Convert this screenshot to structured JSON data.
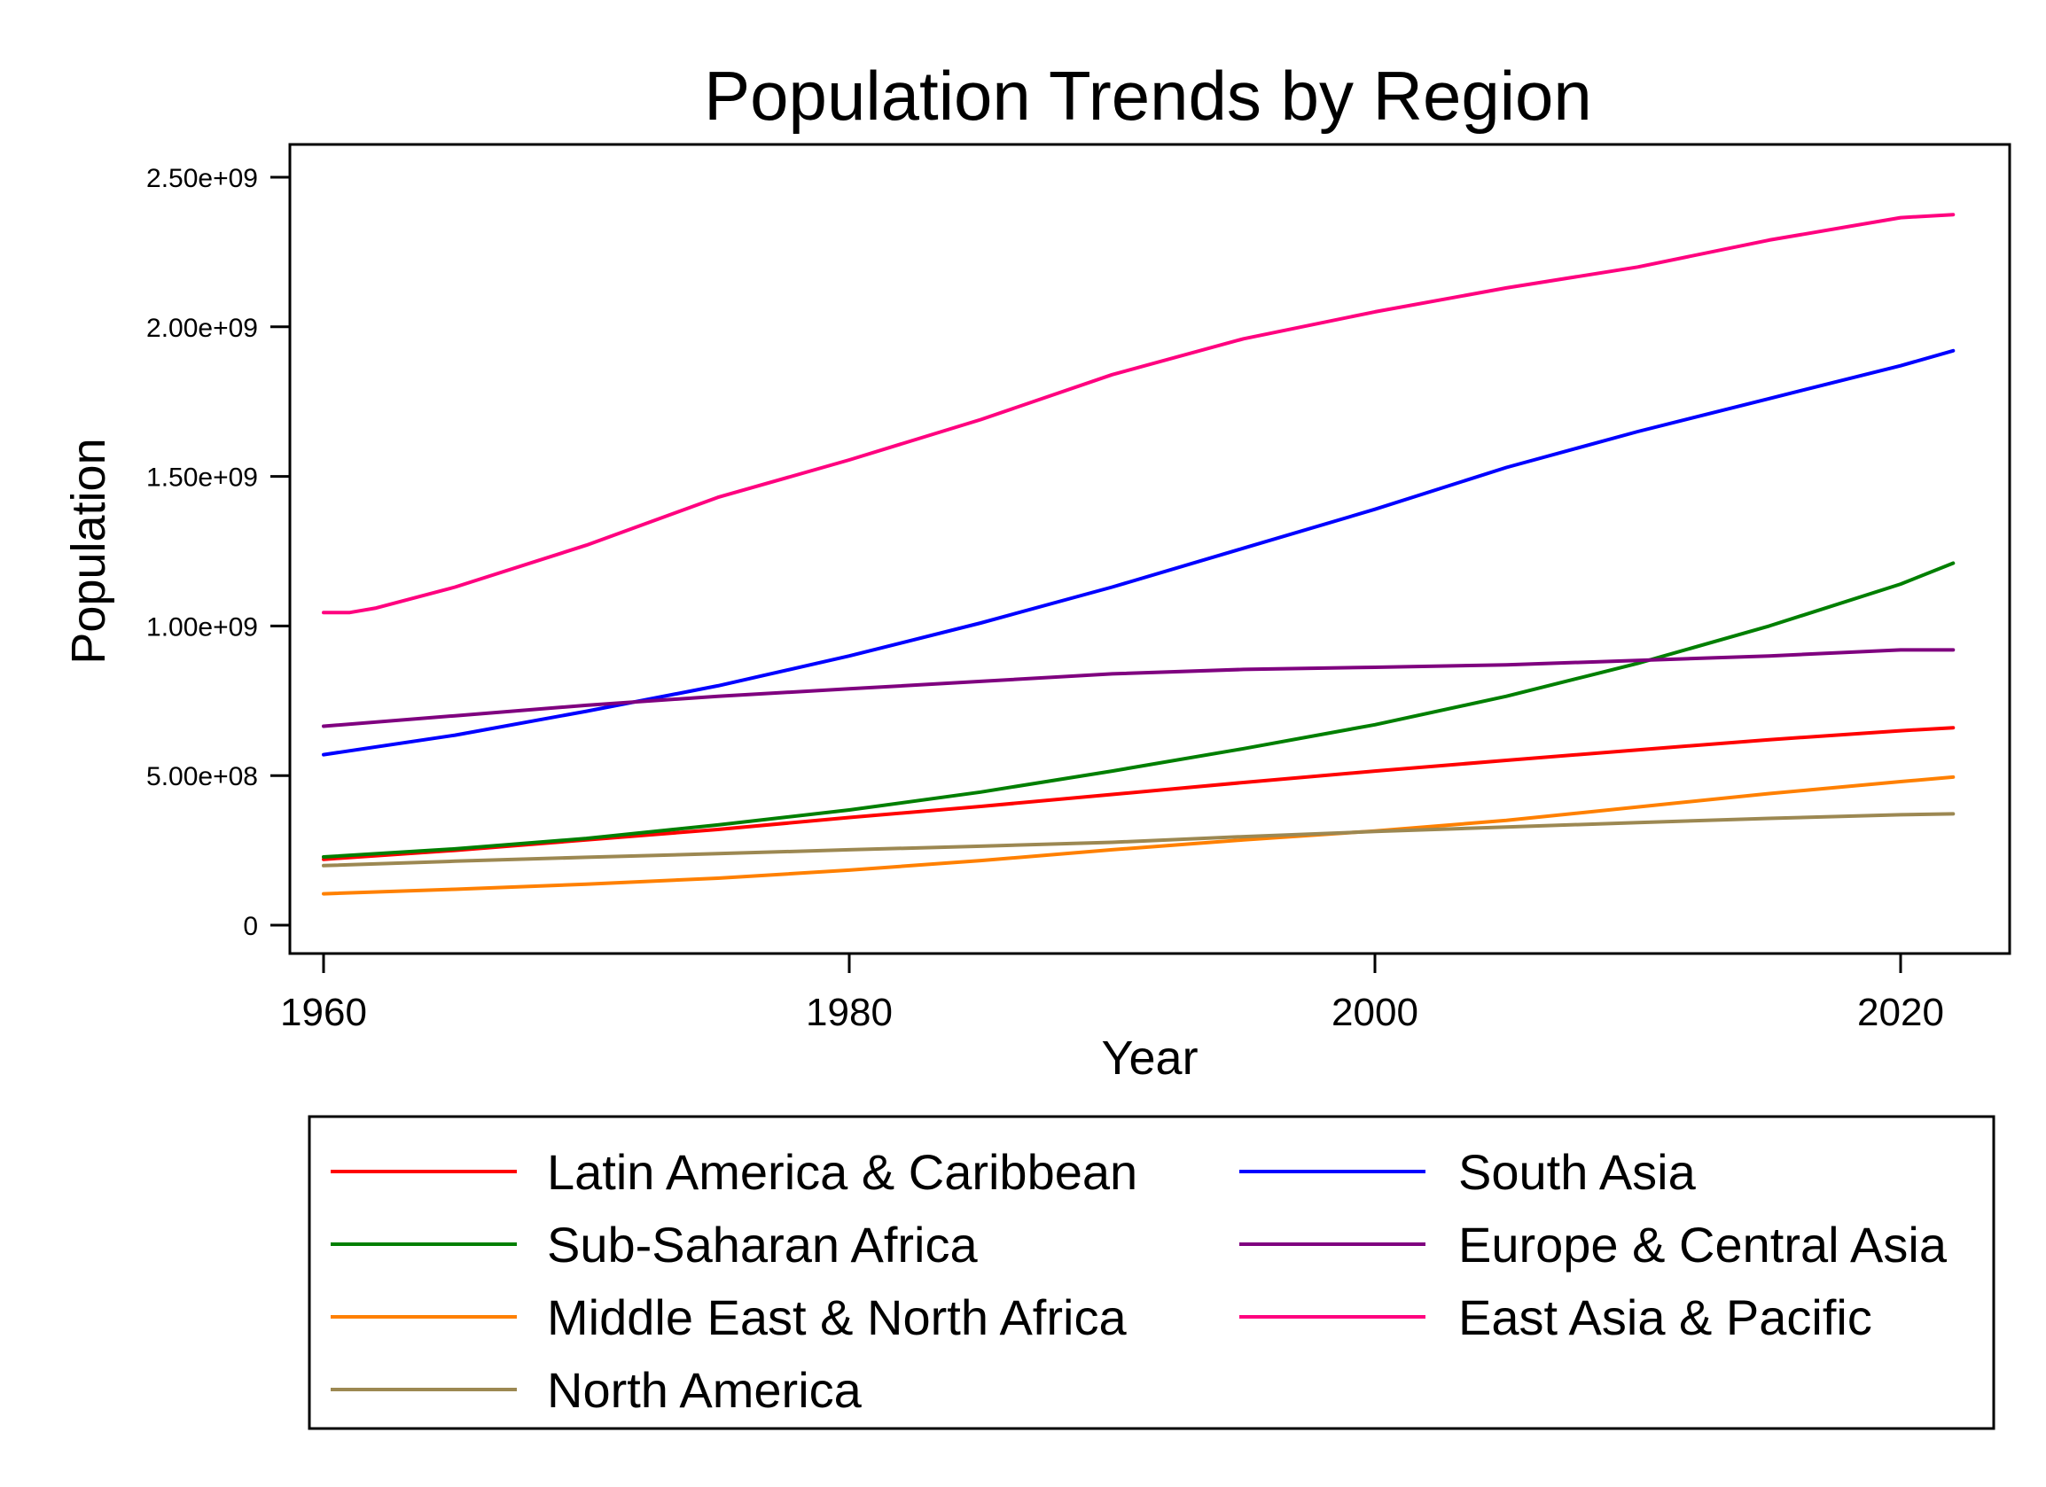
{
  "chart_data": {
    "type": "line",
    "title": "Population Trends by Region",
    "xlabel": "Year",
    "ylabel": "Population",
    "xlim": [
      1959,
      2024
    ],
    "ylim": [
      -100000000,
      2600000000
    ],
    "xticks": [
      1960,
      1980,
      2000,
      2020
    ],
    "xtick_labels": [
      "1960",
      "1980",
      "2000",
      "2020"
    ],
    "yticks": [
      0,
      500000000,
      1000000000,
      1500000000,
      2000000000,
      2500000000
    ],
    "ytick_labels": [
      "0",
      "5.00e+08",
      "1.00e+09",
      "1.50e+09",
      "2.00e+09",
      "2.50e+09"
    ],
    "grid": false,
    "legend_position": "bottom",
    "series": [
      {
        "name": "Latin America & Caribbean",
        "color": "#ff0000",
        "x": [
          1960,
          1965,
          1970,
          1975,
          1980,
          1985,
          1990,
          1995,
          2000,
          2005,
          2010,
          2015,
          2020,
          2022
        ],
        "values": [
          220000000,
          250000000,
          285000000,
          320000000,
          360000000,
          397000000,
          437000000,
          477000000,
          515000000,
          551000000,
          586000000,
          620000000,
          650000000,
          660000000
        ]
      },
      {
        "name": "South Asia",
        "color": "#0000ff",
        "x": [
          1960,
          1965,
          1970,
          1975,
          1980,
          1985,
          1990,
          1995,
          2000,
          2005,
          2010,
          2015,
          2020,
          2022
        ],
        "values": [
          570000000,
          635000000,
          715000000,
          800000000,
          900000000,
          1010000000,
          1130000000,
          1260000000,
          1390000000,
          1530000000,
          1650000000,
          1760000000,
          1870000000,
          1920000000
        ]
      },
      {
        "name": "Sub-Saharan Africa",
        "color": "#007f00",
        "x": [
          1960,
          1965,
          1970,
          1975,
          1980,
          1985,
          1990,
          1995,
          2000,
          2005,
          2010,
          2015,
          2020,
          2022
        ],
        "values": [
          228000000,
          255000000,
          290000000,
          335000000,
          385000000,
          445000000,
          515000000,
          590000000,
          670000000,
          765000000,
          875000000,
          1000000000,
          1140000000,
          1210000000
        ]
      },
      {
        "name": "Europe & Central Asia",
        "color": "#7f007f",
        "x": [
          1960,
          1965,
          1970,
          1975,
          1980,
          1985,
          1990,
          1995,
          2000,
          2005,
          2010,
          2015,
          2020,
          2022
        ],
        "values": [
          665000000,
          700000000,
          735000000,
          765000000,
          790000000,
          815000000,
          840000000,
          855000000,
          862000000,
          870000000,
          885000000,
          900000000,
          920000000,
          920000000
        ]
      },
      {
        "name": "Middle East & North Africa",
        "color": "#ff8000",
        "x": [
          1960,
          1965,
          1970,
          1975,
          1980,
          1985,
          1990,
          1995,
          2000,
          2005,
          2010,
          2015,
          2020,
          2022
        ],
        "values": [
          105000000,
          120000000,
          137000000,
          157000000,
          184000000,
          216000000,
          252000000,
          285000000,
          315000000,
          350000000,
          395000000,
          440000000,
          480000000,
          495000000
        ]
      },
      {
        "name": "East Asia & Pacific",
        "color": "#ff007f",
        "x": [
          1960,
          1961,
          1962,
          1965,
          1970,
          1975,
          1980,
          1985,
          1990,
          1995,
          2000,
          2005,
          2010,
          2015,
          2020,
          2022
        ],
        "values": [
          1045000000,
          1045000000,
          1060000000,
          1130000000,
          1270000000,
          1430000000,
          1555000000,
          1690000000,
          1840000000,
          1960000000,
          2050000000,
          2130000000,
          2200000000,
          2290000000,
          2365000000,
          2375000000
        ]
      },
      {
        "name": "North America",
        "color": "#9c8852",
        "x": [
          1960,
          1965,
          1970,
          1975,
          1980,
          1985,
          1990,
          1995,
          2000,
          2005,
          2010,
          2015,
          2020,
          2022
        ],
        "values": [
          199000000,
          214000000,
          227000000,
          239000000,
          252000000,
          264000000,
          277000000,
          296000000,
          313000000,
          328000000,
          343000000,
          357000000,
          369000000,
          372000000
        ]
      }
    ],
    "legend_order": [
      "Latin America & Caribbean",
      "Sub-Saharan Africa",
      "Middle East & North Africa",
      "North America",
      "South Asia",
      "Europe & Central Asia",
      "East Asia & Pacific"
    ]
  }
}
